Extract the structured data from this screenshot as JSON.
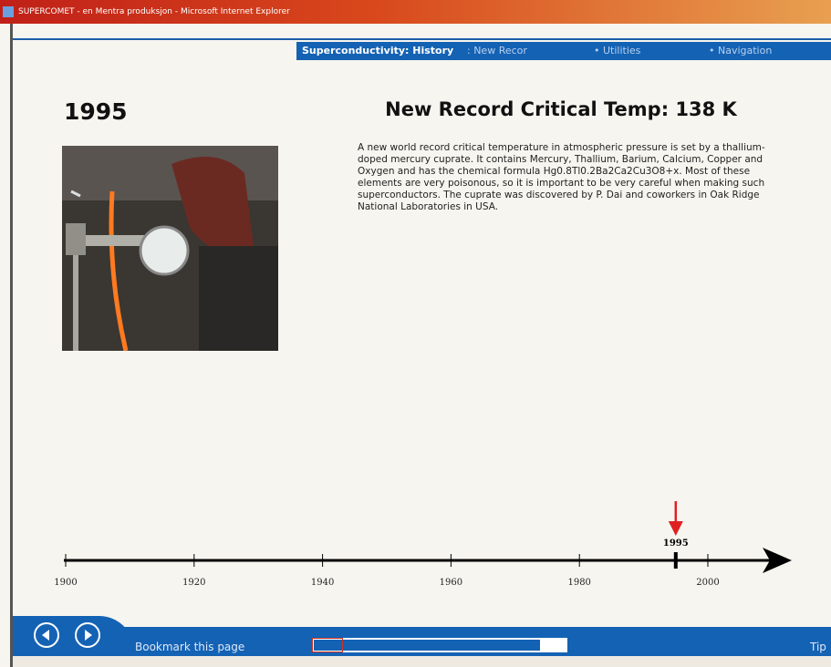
{
  "window_title": "SUPERCOMET - en Mentra produksjon - Microsoft Internet Explorer",
  "nav": {
    "breadcrumb": "Superconductivity: History",
    "current": ": New Recor",
    "utilities": "• Utilities",
    "navigation": "• Navigation"
  },
  "year": "1995",
  "title": "New Record Critical Temp: 138 K",
  "body": "A new world record critical temperature in atmospheric pressure is set by a thallium-doped mercury cuprate. It contains Mercury, Thallium, Barium, Calcium, Copper and Oxygen and has the chemical formula Hg0.8Tl0.2Ba2Ca2Cu3O8+x. Most of these elements are very poisonous, so it is important to be very careful when making such superconductors. The cuprate was discovered by P. Dai and coworkers in Oak Ridge National Laboratories in USA.",
  "timeline": {
    "xlim": [
      1900,
      2000
    ],
    "xticks": [
      1900,
      1920,
      1940,
      1960,
      1980,
      2000
    ],
    "marker": 1995
  },
  "footer": {
    "bookmark": "Bookmark this page",
    "tip": "Tip"
  }
}
